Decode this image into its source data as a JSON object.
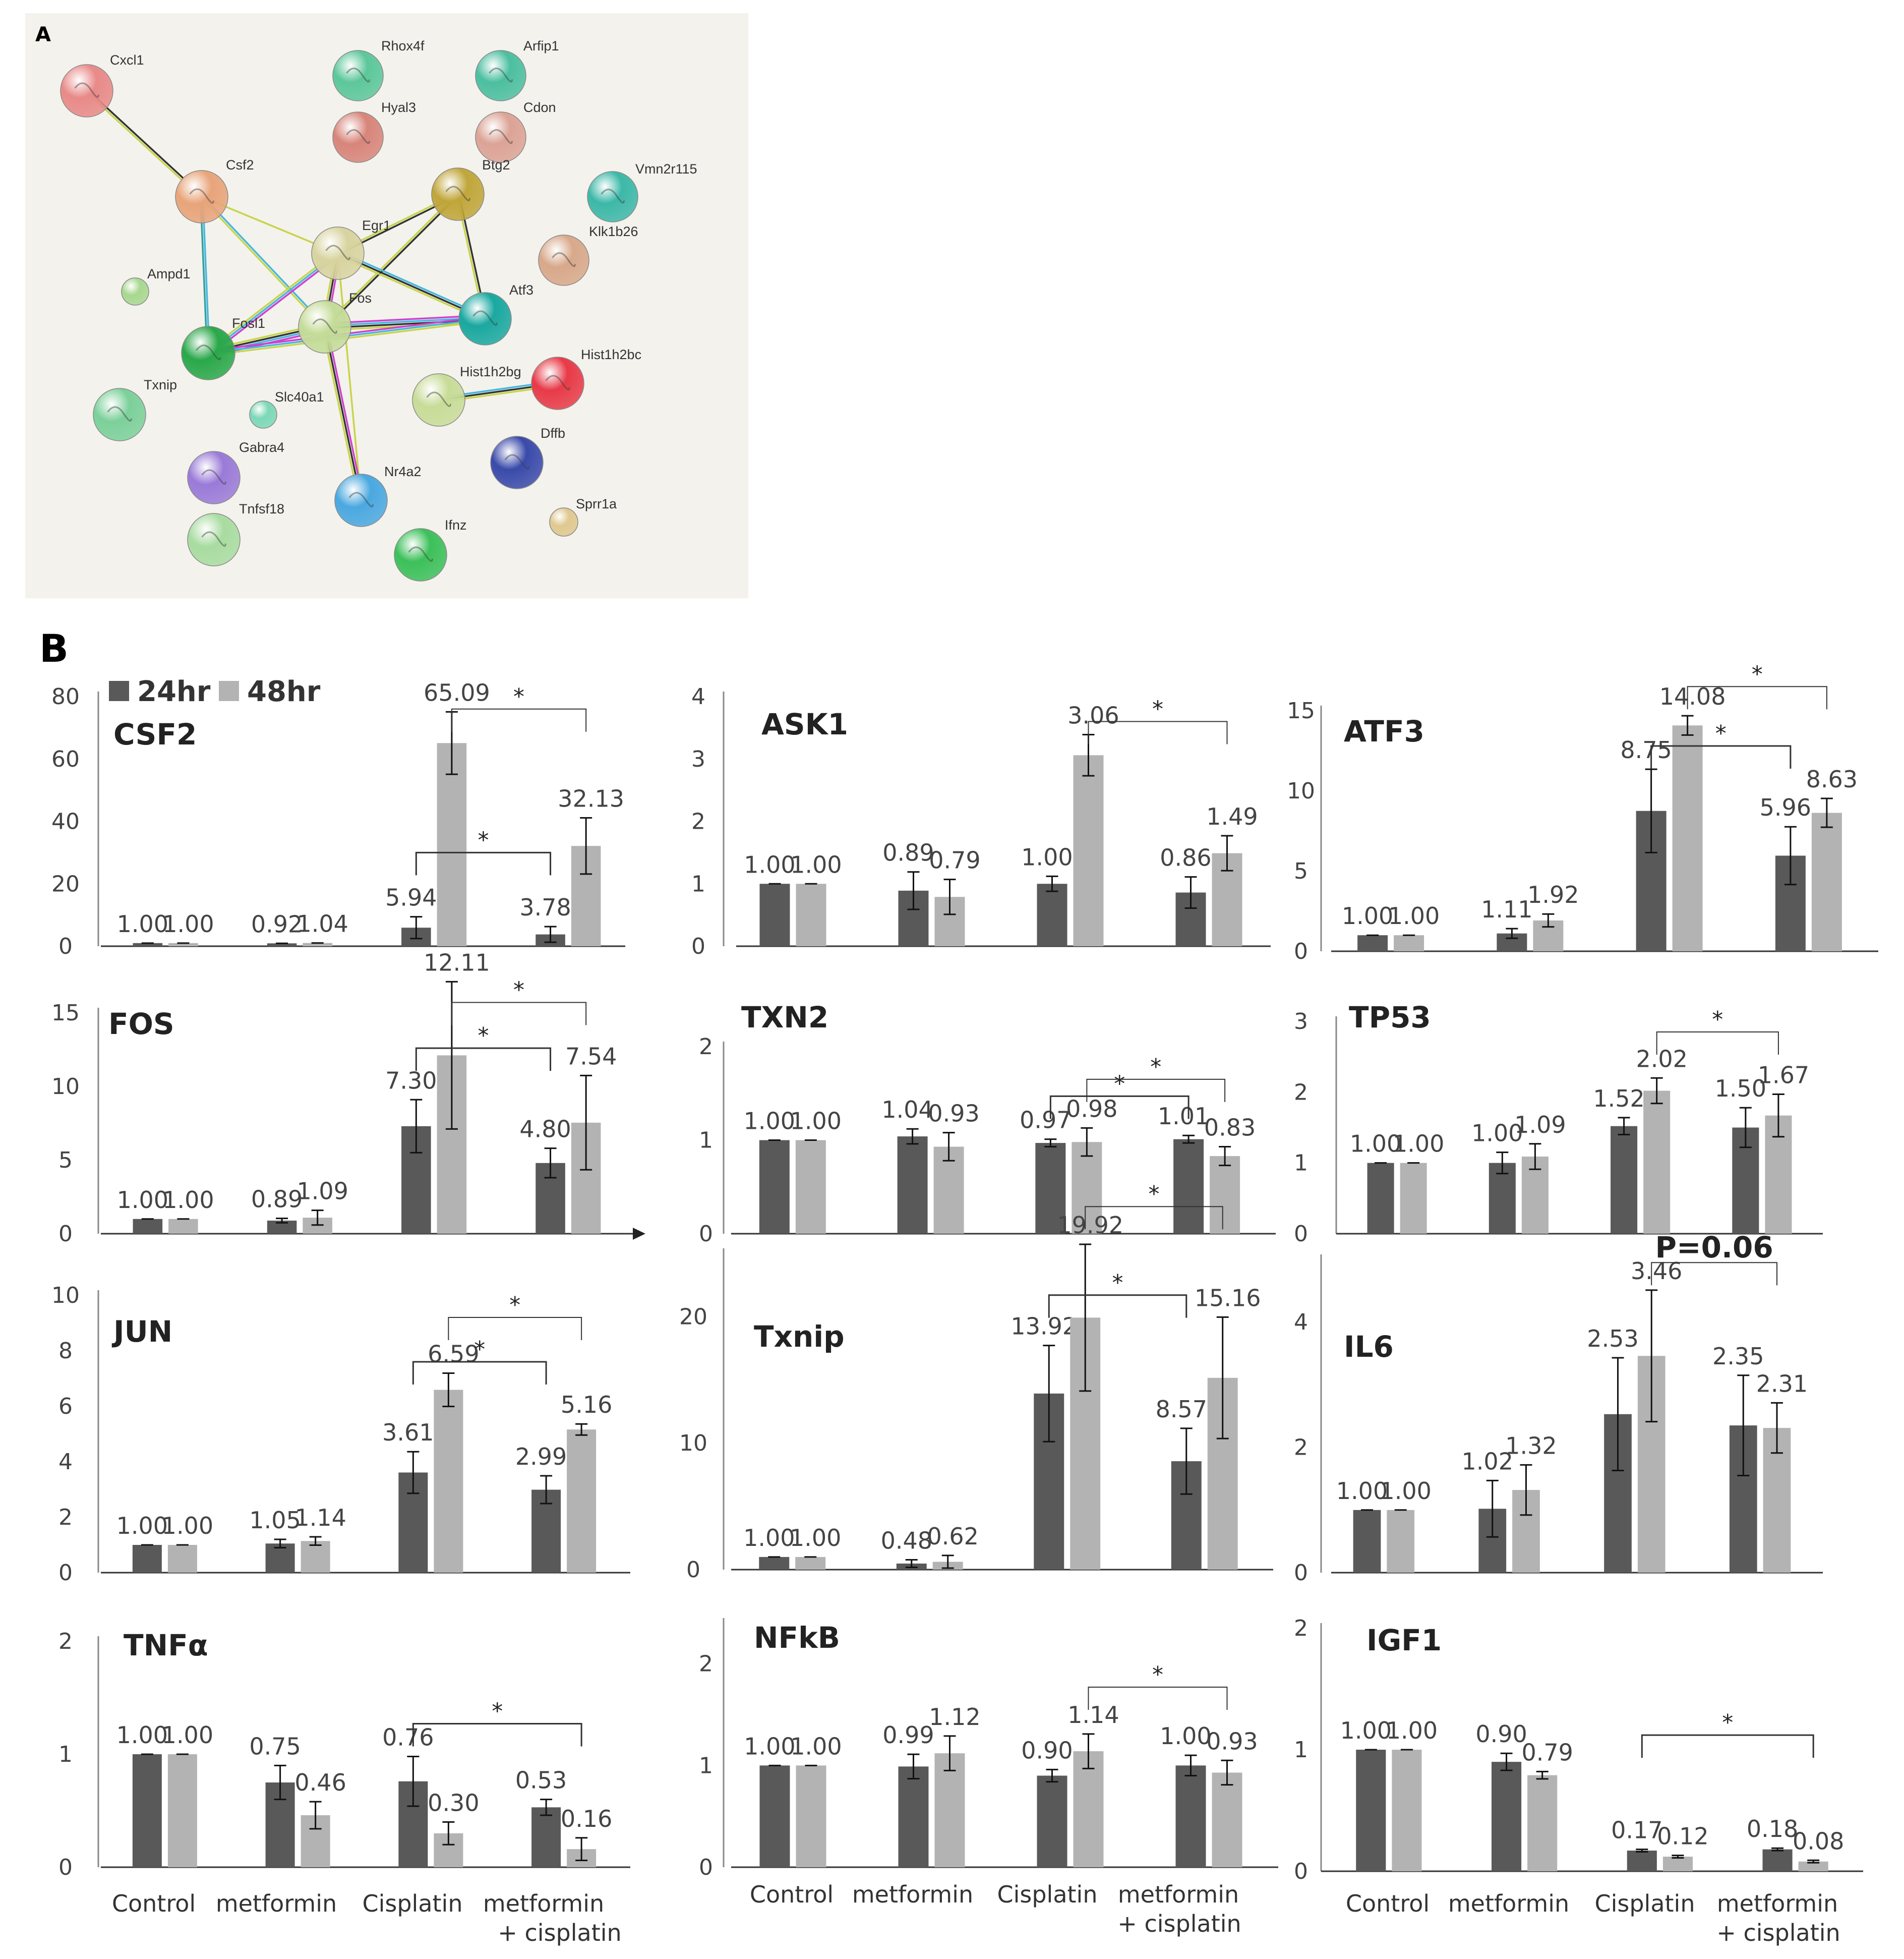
{
  "panel_a": {
    "label": "A",
    "nodes": [
      {
        "name": "Cxcl1",
        "color": "#e88a88"
      },
      {
        "name": "Rhox4f",
        "color": "#5cc79a"
      },
      {
        "name": "Arfip1",
        "color": "#4cbfa0"
      },
      {
        "name": "Hyal3",
        "color": "#d8857a"
      },
      {
        "name": "Cdon",
        "color": "#dca396"
      },
      {
        "name": "Csf2",
        "color": "#e8a47a"
      },
      {
        "name": "Btg2",
        "color": "#c0a63a"
      },
      {
        "name": "Vmn2r115",
        "color": "#3cb8a8"
      },
      {
        "name": "Egr1",
        "color": "#d8d4a0"
      },
      {
        "name": "Klk1b26",
        "color": "#d8a88a"
      },
      {
        "name": "Ampd1",
        "color": "#a8d890"
      },
      {
        "name": "Fos",
        "color": "#c4dc98"
      },
      {
        "name": "Atf3",
        "color": "#1aa8a0"
      },
      {
        "name": "Fosl1",
        "color": "#2aa84a"
      },
      {
        "name": "Hist1h2bc",
        "color": "#e83a48"
      },
      {
        "name": "Hist1h2bg",
        "color": "#c8dc98"
      },
      {
        "name": "Txnip",
        "color": "#7cd09a"
      },
      {
        "name": "Slc40a1",
        "color": "#7cd8b8"
      },
      {
        "name": "Dffb",
        "color": "#3a4aaa"
      },
      {
        "name": "Gabra4",
        "color": "#9a7ad8"
      },
      {
        "name": "Nr4a2",
        "color": "#4aa8e0"
      },
      {
        "name": "Sprr1a",
        "color": "#e0c890"
      },
      {
        "name": "Tnfsf18",
        "color": "#a8dca0"
      },
      {
        "name": "Ifnz",
        "color": "#3cc05a"
      }
    ]
  },
  "panel_b": {
    "label": "B",
    "legend": [
      {
        "label": "24hr",
        "color": "#595959"
      },
      {
        "label": "48hr",
        "color": "#b3b3b3"
      }
    ]
  },
  "chart_data": [
    {
      "type": "bar",
      "title": "CSF2",
      "categories": [
        "Control",
        "metformin",
        "Cisplatin",
        "metformin + cisplatin"
      ],
      "series": [
        {
          "name": "24hr",
          "values": [
            1.0,
            0.92,
            5.94,
            3.78
          ]
        },
        {
          "name": "48hr",
          "values": [
            1.0,
            1.04,
            65.09,
            32.13
          ]
        }
      ],
      "labels": [
        [
          "1.00",
          "0.92",
          "5.94",
          "3.78"
        ],
        [
          "1.00",
          "1.04",
          "65.09",
          "32.13"
        ]
      ],
      "yticks": [
        "0",
        "20",
        "40",
        "60",
        "80"
      ],
      "ylim": [
        0,
        80
      ],
      "errors": [
        [
          0,
          0,
          3.5,
          2.5
        ],
        [
          0,
          0,
          10,
          9
        ]
      ]
    },
    {
      "type": "bar",
      "title": "ASK1",
      "categories": [
        "Control",
        "metformin",
        "Cisplatin",
        "metformin + cisplatin"
      ],
      "series": [
        {
          "name": "24hr",
          "values": [
            1.0,
            0.89,
            1.0,
            0.86
          ]
        },
        {
          "name": "48hr",
          "values": [
            1.0,
            0.79,
            3.06,
            1.49
          ]
        }
      ],
      "labels": [
        [
          "1.00",
          "0.89",
          "1.00",
          "0.86"
        ],
        [
          "1.00",
          "0.79",
          "3.06",
          "1.49"
        ]
      ],
      "yticks": [
        "0",
        "1",
        "2",
        "3",
        "4"
      ],
      "ylim": [
        0,
        4
      ],
      "errors": [
        [
          0,
          0.3,
          0.12,
          0.25
        ],
        [
          0,
          0.28,
          0.33,
          0.28
        ]
      ]
    },
    {
      "type": "bar",
      "title": "ATF3",
      "categories": [
        "Control",
        "metformin",
        "Cisplatin",
        "metformin + cisplatin"
      ],
      "series": [
        {
          "name": "24hr",
          "values": [
            1.0,
            1.11,
            8.75,
            5.96
          ]
        },
        {
          "name": "48hr",
          "values": [
            1.0,
            1.92,
            14.08,
            8.63
          ]
        }
      ],
      "labels": [
        [
          "1.00",
          "1.11",
          "8.75",
          "5.96"
        ],
        [
          "1.00",
          "1.92",
          "14.08",
          "8.63"
        ]
      ],
      "yticks": [
        "0",
        "5",
        "10",
        "15"
      ],
      "ylim": [
        0,
        15
      ],
      "errors": [
        [
          0,
          0.3,
          2.6,
          1.8
        ],
        [
          0,
          0.4,
          0.6,
          0.9
        ]
      ]
    },
    {
      "type": "bar",
      "title": "FOS",
      "categories": [
        "Control",
        "metformin",
        "Cisplatin",
        "metformin + cisplatin"
      ],
      "series": [
        {
          "name": "24hr",
          "values": [
            1.0,
            0.89,
            7.3,
            4.8
          ]
        },
        {
          "name": "48hr",
          "values": [
            1.0,
            1.09,
            12.11,
            7.54
          ]
        }
      ],
      "labels": [
        [
          "1.00",
          "0.89",
          "7.30",
          "4.80"
        ],
        [
          "1.00",
          "1.09",
          "12.11",
          "7.54"
        ]
      ],
      "yticks": [
        "0",
        "5",
        "10",
        "15"
      ],
      "ylim": [
        0,
        15
      ],
      "errors": [
        [
          0,
          0.15,
          1.8,
          1.0
        ],
        [
          0,
          0.5,
          5.0,
          3.2
        ]
      ]
    },
    {
      "type": "bar",
      "title": "TXN2",
      "categories": [
        "Control",
        "metformin",
        "Cisplatin",
        "metformin + cisplatin"
      ],
      "series": [
        {
          "name": "24hr",
          "values": [
            1.0,
            1.04,
            0.97,
            1.01
          ]
        },
        {
          "name": "48hr",
          "values": [
            1.0,
            0.93,
            0.98,
            0.83
          ]
        }
      ],
      "labels": [
        [
          "1.00",
          "1.04",
          "0.97",
          "1.01"
        ],
        [
          "1.00",
          "0.93",
          "0.98",
          "0.83"
        ]
      ],
      "yticks": [
        "0",
        "1",
        "2"
      ],
      "ylim": [
        0,
        2
      ],
      "errors": [
        [
          0,
          0.08,
          0.04,
          0.04
        ],
        [
          0,
          0.15,
          0.15,
          0.1
        ]
      ]
    },
    {
      "type": "bar",
      "title": "TP53",
      "categories": [
        "Control",
        "metformin",
        "Cisplatin",
        "metformin + cisplatin"
      ],
      "series": [
        {
          "name": "24hr",
          "values": [
            1.0,
            1.0,
            1.52,
            1.5
          ]
        },
        {
          "name": "48hr",
          "values": [
            1.0,
            1.09,
            2.02,
            1.67
          ]
        }
      ],
      "labels": [
        [
          "1.00",
          "1.00",
          "1.52",
          "1.50"
        ],
        [
          "1.00",
          "1.09",
          "2.02",
          "1.67"
        ]
      ],
      "yticks": [
        "0",
        "1",
        "2",
        "3"
      ],
      "ylim": [
        0,
        3
      ],
      "errors": [
        [
          0,
          0.15,
          0.12,
          0.28
        ],
        [
          0,
          0.18,
          0.18,
          0.3
        ]
      ]
    },
    {
      "type": "bar",
      "title": "JUN",
      "categories": [
        "Control",
        "metformin",
        "Cisplatin",
        "metformin + cisplatin"
      ],
      "series": [
        {
          "name": "24hr",
          "values": [
            1.0,
            1.05,
            3.61,
            2.99
          ]
        },
        {
          "name": "48hr",
          "values": [
            1.0,
            1.14,
            6.59,
            5.16
          ]
        }
      ],
      "labels": [
        [
          "1.00",
          "1.05",
          "3.61",
          "2.99"
        ],
        [
          "1.00",
          "1.14",
          "6.59",
          "5.16"
        ]
      ],
      "yticks": [
        "0",
        "2",
        "4",
        "6",
        "8",
        "10"
      ],
      "ylim": [
        0,
        10
      ],
      "errors": [
        [
          0,
          0.15,
          0.75,
          0.5
        ],
        [
          0,
          0.15,
          0.6,
          0.2
        ]
      ]
    },
    {
      "type": "bar",
      "title": "Txnip",
      "categories": [
        "Control",
        "metformin",
        "Cisplatin",
        "metformin + cisplatin"
      ],
      "series": [
        {
          "name": "24hr",
          "values": [
            1.0,
            0.48,
            13.92,
            8.57
          ]
        },
        {
          "name": "48hr",
          "values": [
            1.0,
            0.62,
            19.92,
            15.16
          ]
        }
      ],
      "labels": [
        [
          "1.00",
          "0.48",
          "13.92",
          "8.57"
        ],
        [
          "1.00",
          "0.62",
          "19.92",
          "15.16"
        ]
      ],
      "yticks": [
        "0",
        "10",
        "20"
      ],
      "ylim": [
        0,
        25
      ],
      "errors": [
        [
          0,
          0.3,
          3.8,
          2.6
        ],
        [
          0,
          0.5,
          5.8,
          4.8
        ]
      ]
    },
    {
      "type": "bar",
      "title": "IL6",
      "categories": [
        "Control",
        "metformin",
        "Cisplatin",
        "metformin + cisplatin"
      ],
      "series": [
        {
          "name": "24hr",
          "values": [
            1.0,
            1.02,
            2.53,
            2.35
          ]
        },
        {
          "name": "48hr",
          "values": [
            1.0,
            1.32,
            3.46,
            2.31
          ]
        }
      ],
      "labels": [
        [
          "1.00",
          "1.02",
          "2.53",
          "2.35"
        ],
        [
          "1.00",
          "1.32",
          "3.46",
          "2.31"
        ]
      ],
      "yticks": [
        "0",
        "2",
        "4"
      ],
      "ylim": [
        0,
        5
      ],
      "errors": [
        [
          0,
          0.45,
          0.9,
          0.8
        ],
        [
          0,
          0.4,
          1.05,
          0.4
        ]
      ]
    },
    {
      "type": "bar",
      "title": "TNFα",
      "categories": [
        "Control",
        "metformin",
        "Cisplatin",
        "metformin + cisplatin"
      ],
      "series": [
        {
          "name": "24hr",
          "values": [
            1.0,
            0.75,
            0.76,
            0.53
          ]
        },
        {
          "name": "48hr",
          "values": [
            1.0,
            0.46,
            0.3,
            0.16
          ]
        }
      ],
      "labels": [
        [
          "1.00",
          "0.75",
          "0.76",
          "0.53"
        ],
        [
          "1.00",
          "0.46",
          "0.30",
          "0.16"
        ]
      ],
      "yticks": [
        "0",
        "1",
        "2"
      ],
      "ylim": [
        0,
        2
      ],
      "errors": [
        [
          0,
          0.15,
          0.22,
          0.07
        ],
        [
          0,
          0.12,
          0.1,
          0.1
        ]
      ]
    },
    {
      "type": "bar",
      "title": "NFkB",
      "categories": [
        "Control",
        "metformin",
        "Cisplatin",
        "metformin + cisplatin"
      ],
      "series": [
        {
          "name": "24hr",
          "values": [
            1.0,
            0.99,
            0.9,
            1.0
          ]
        },
        {
          "name": "48hr",
          "values": [
            1.0,
            1.12,
            1.14,
            0.93
          ]
        }
      ],
      "labels": [
        [
          "1.00",
          "0.99",
          "0.90",
          "1.00"
        ],
        [
          "1.00",
          "1.12",
          "1.14",
          "0.93"
        ]
      ],
      "yticks": [
        "0",
        "1",
        "2"
      ],
      "ylim": [
        0,
        2.4
      ],
      "errors": [
        [
          0,
          0.12,
          0.06,
          0.1
        ],
        [
          0,
          0.17,
          0.17,
          0.12
        ]
      ]
    },
    {
      "type": "bar",
      "title": "IGF1",
      "categories": [
        "Control",
        "metformin",
        "Cisplatin",
        "metformin + cisplatin"
      ],
      "series": [
        {
          "name": "24hr",
          "values": [
            1.0,
            0.9,
            0.17,
            0.18
          ]
        },
        {
          "name": "48hr",
          "values": [
            1.0,
            0.79,
            0.12,
            0.08
          ]
        }
      ],
      "labels": [
        [
          "1.00",
          "0.90",
          "0.17",
          "0.18"
        ],
        [
          "1.00",
          "0.79",
          "0.12",
          "0.08"
        ]
      ],
      "yticks": [
        "0",
        "1",
        "2"
      ],
      "ylim": [
        0,
        2
      ],
      "errors": [
        [
          0,
          0.07,
          0.01,
          0.01
        ],
        [
          0,
          0.03,
          0.01,
          0.01
        ]
      ]
    }
  ],
  "annotations": {
    "star": "*",
    "p_value": "P=0.06",
    "x_categories": [
      "Control",
      "metformin",
      "Cisplatin",
      "metformin",
      "+ cisplatin"
    ]
  }
}
